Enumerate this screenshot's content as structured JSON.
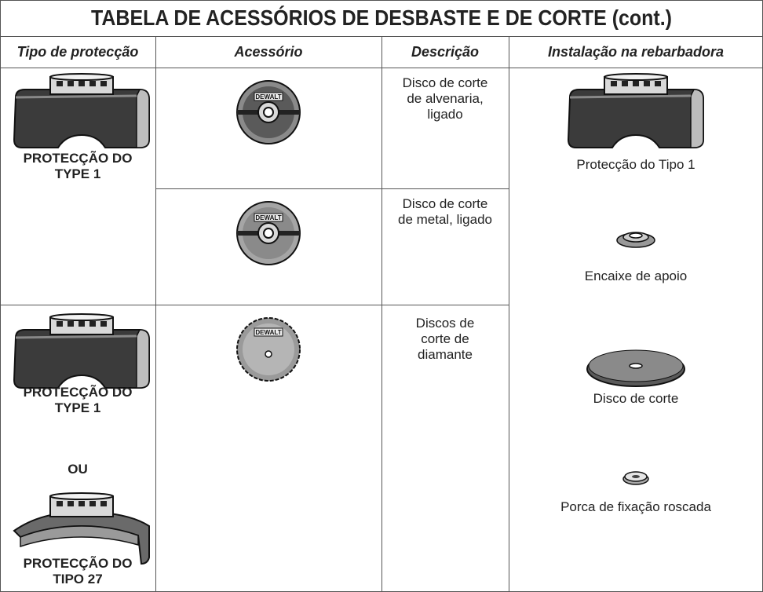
{
  "title": "TABELA DE ACESSÓRIOS DE DESBASTE E DE CORTE (cont.)",
  "table": {
    "headers": [
      "Tipo de protecção",
      "Acessório",
      "Descrição",
      "Instalação na rebarbadora"
    ],
    "brand_label": "DEWALT",
    "rows": [
      {
        "guards": [
          "PROTECÇÃO DO TYPE 1"
        ],
        "descriptions": [
          "Disco de corte de alvenaria, ligado",
          "Disco de corte de metal, ligado"
        ]
      },
      {
        "guards": [
          "PROTECÇÃO DO TYPE 1",
          "OU",
          "PROTECÇÃO DO TIPO 27"
        ],
        "descriptions": [
          "Discos de corte de diamante"
        ]
      }
    ],
    "installation": [
      "Protecção do Tipo 1",
      "Encaixe de apoio",
      "Disco de corte",
      "Porca de fixação roscada"
    ]
  }
}
